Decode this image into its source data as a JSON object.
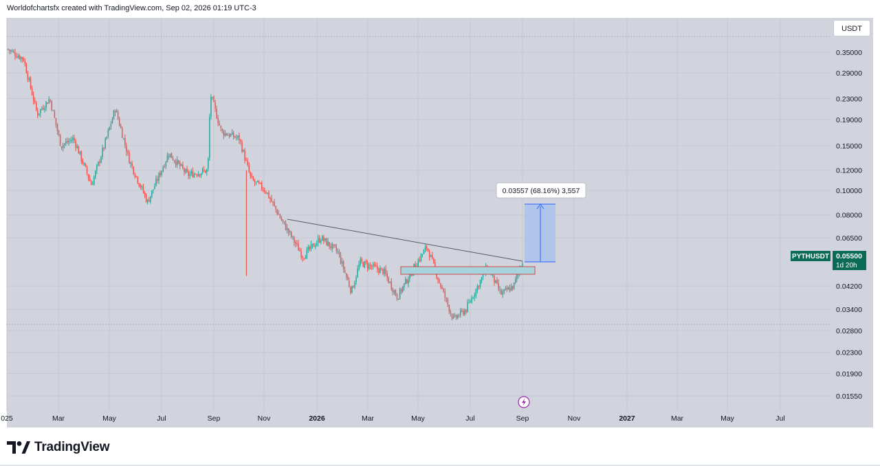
{
  "header": {
    "caption": "Worldofchartsfx created with TradingView.com, Sep 02, 2026 01:19 UTC-3"
  },
  "price_axis": {
    "currency": "USDT"
  },
  "brand": {
    "name": "TradingView"
  },
  "icons": {
    "brand_logo": "tradingview-logo-icon",
    "events": "lightning-event-icon"
  },
  "colors": {
    "background": "#d1d4dc",
    "up": "#26a69a",
    "down": "#ef5350",
    "last_price_bg": "#0c6b55",
    "measure_fill": "#a9c2ee",
    "measure_line": "#2962ff",
    "zone_fill": "#a7d3dc",
    "zone_border": "#d04545",
    "trendline": "#555a66"
  },
  "chart_data": {
    "type": "candlestick",
    "symbol": "PYTHUSDT",
    "scale": "log",
    "x_tick_labels": [
      "025",
      "Mar",
      "May",
      "Jul",
      "Sep",
      "Nov",
      "2026",
      "Mar",
      "May",
      "Jul",
      "Sep",
      "Nov",
      "2027",
      "Mar",
      "May",
      "Jul"
    ],
    "y_tick_labels": [
      "0.35000",
      "0.29000",
      "0.23000",
      "0.19000",
      "0.15000",
      "0.12000",
      "0.10000",
      "0.08000",
      "0.06500",
      "0.04200",
      "0.03400",
      "0.02800",
      "0.02300",
      "0.01900",
      "0.01550"
    ],
    "last_price": {
      "symbol_label": "PYTHUSDT",
      "value": "0.05500",
      "countdown": "1d 20h"
    },
    "measurement": {
      "label": "0.03557 (68.16%) 3,557"
    },
    "price_path": [
      [
        "2025-01",
        0.36
      ],
      [
        "2025-01-20",
        0.33
      ],
      [
        "2025-02-05",
        0.2
      ],
      [
        "2025-02-20",
        0.23
      ],
      [
        "2025-03-05",
        0.15
      ],
      [
        "2025-03-20",
        0.16
      ],
      [
        "2025-04-10",
        0.105
      ],
      [
        "2025-04-25",
        0.15
      ],
      [
        "2025-05-08",
        0.21
      ],
      [
        "2025-05-25",
        0.13
      ],
      [
        "2025-06-15",
        0.09
      ],
      [
        "2025-07-10",
        0.14
      ],
      [
        "2025-08-01",
        0.115
      ],
      [
        "2025-08-25",
        0.12
      ],
      [
        "2025-08-28",
        0.24
      ],
      [
        "2025-09-10",
        0.17
      ],
      [
        "2025-10-01",
        0.16
      ],
      [
        "2025-10-15",
        0.11
      ],
      [
        "2025-11-01",
        0.1
      ],
      [
        "2025-11-20",
        0.076
      ],
      [
        "2025-12-15",
        0.055
      ],
      [
        "2026-01-05",
        0.065
      ],
      [
        "2026-01-25",
        0.057
      ],
      [
        "2026-02-10",
        0.04
      ],
      [
        "2026-02-20",
        0.052
      ],
      [
        "2026-03-20",
        0.048
      ],
      [
        "2026-04-05",
        0.038
      ],
      [
        "2026-04-25",
        0.05
      ],
      [
        "2026-05-10",
        0.06
      ],
      [
        "2026-05-25",
        0.043
      ],
      [
        "2026-06-10",
        0.031
      ],
      [
        "2026-06-25",
        0.034
      ],
      [
        "2026-07-20",
        0.05
      ],
      [
        "2026-08-05",
        0.039
      ],
      [
        "2026-08-20",
        0.042
      ],
      [
        "2026-09-01",
        0.055
      ]
    ]
  }
}
